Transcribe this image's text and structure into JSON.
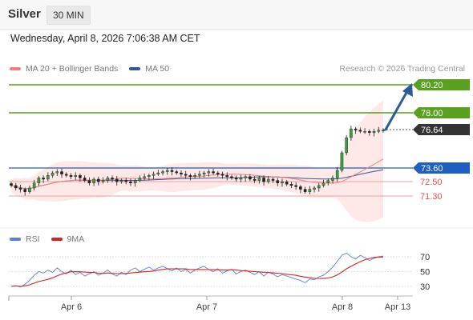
{
  "header": {
    "instrument": "Silver",
    "timeframe": "30 MIN"
  },
  "datetime": "Wednesday, April 8, 2026 7:06:38 AM CET",
  "legend": {
    "ma20_label": "MA 20 + Bollinger Bands",
    "ma50_label": "MA 50",
    "credit": "Research © 2026 Trading Central",
    "rsi_label": "RSI",
    "rsi_ma_label": "9MA"
  },
  "colors": {
    "ma20": "#f08080",
    "ma50": "#2e5a9c",
    "bands": "#fde0e0",
    "resistance": "#5aa01e",
    "support_blue": "#1f5fbf",
    "support_red": "#e05050",
    "current": "#333333",
    "arrow": "#2e5a9c",
    "rsi": "#5b7fd6",
    "rsi_ma": "#d92020"
  },
  "levels": [
    {
      "value": "80.20",
      "kind": "resistance"
    },
    {
      "value": "78.00",
      "kind": "resistance"
    },
    {
      "value": "76.64",
      "kind": "current"
    },
    {
      "value": "73.60",
      "kind": "support_blue"
    },
    {
      "value": "72.50",
      "kind": "support_red"
    },
    {
      "value": "71.30",
      "kind": "support_red"
    }
  ],
  "rsi_ticks": [
    "70",
    "50",
    "30"
  ],
  "x_ticks": [
    "Apr 6",
    "Apr 7",
    "Apr 8",
    "Apr 13"
  ],
  "chart_data": {
    "type": "candlestick",
    "price_unit": "USD",
    "closes_approx": [
      72.2,
      72.0,
      71.9,
      71.7,
      72.0,
      72.4,
      72.8,
      72.7,
      73.0,
      73.2,
      73.3,
      73.1,
      73.0,
      72.9,
      73.0,
      72.8,
      72.6,
      72.4,
      72.7,
      72.5,
      72.6,
      72.8,
      72.7,
      72.5,
      72.6,
      72.5,
      72.4,
      72.6,
      72.8,
      72.9,
      73.0,
      73.1,
      73.2,
      73.3,
      73.4,
      73.3,
      73.2,
      73.1,
      73.0,
      72.9,
      73.0,
      73.1,
      73.2,
      73.3,
      73.2,
      73.1,
      73.0,
      72.9,
      72.8,
      72.7,
      72.8,
      72.9,
      72.7,
      72.6,
      72.8,
      72.5,
      72.7,
      72.6,
      72.4,
      72.5,
      72.3,
      72.2,
      72.1,
      71.9,
      71.7,
      71.9,
      72.0,
      72.2,
      72.4,
      72.6,
      72.8,
      73.4,
      74.8,
      76.0,
      76.7,
      76.6,
      76.5,
      76.5,
      76.4,
      76.5,
      76.6,
      76.6
    ],
    "rsi_approx": [
      30,
      31,
      29,
      33,
      38,
      45,
      50,
      48,
      52,
      49,
      55,
      50,
      47,
      52,
      46,
      49,
      44,
      47,
      50,
      45,
      48,
      52,
      47,
      44,
      49,
      46,
      52,
      55,
      50,
      53,
      56,
      52,
      55,
      57,
      54,
      51,
      55,
      50,
      53,
      48,
      52,
      55,
      57,
      53,
      50,
      54,
      48,
      51,
      53,
      47,
      50,
      52,
      49,
      46,
      50,
      44,
      49,
      47,
      43,
      46,
      44,
      42,
      40,
      38,
      35,
      40,
      39,
      43,
      45,
      50,
      56,
      64,
      72,
      75,
      70,
      67,
      72,
      69,
      65,
      68,
      70,
      71
    ],
    "rsi_range": [
      0,
      100
    ],
    "projection_target": "80.20"
  }
}
